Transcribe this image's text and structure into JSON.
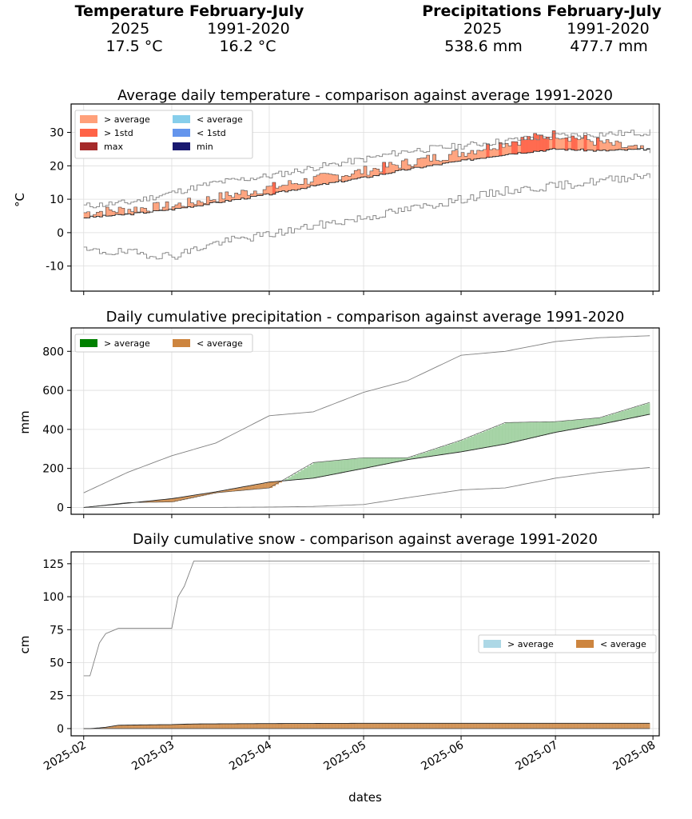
{
  "summary": {
    "temperature": {
      "title": "Temperature February-July",
      "col1": "2025",
      "col2": "1991-2020",
      "val1": "17.5 °C",
      "val2": "16.2 °C"
    },
    "precipitation": {
      "title": "Precipitations February-July",
      "col1": "2025",
      "col2": "1991-2020",
      "val1": "538.6 mm",
      "val2": "477.7 mm"
    }
  },
  "xaxis": {
    "label": "dates",
    "ticks": [
      "2025-02",
      "2025-03",
      "2025-04",
      "2025-05",
      "2025-06",
      "2025-07",
      "2025-08"
    ]
  },
  "colors": {
    "above": "#ffa07a",
    "above_std": "#ff6347",
    "max": "#a52a2a",
    "below": "#87ceeb",
    "below_std": "#6495ed",
    "min": "#191970",
    "precip_above": "#008000",
    "precip_fill": "#98cc98",
    "below_brown": "#cd853f",
    "snow_above": "#add8e6",
    "snow_fill": "#d4a06a",
    "envelope": "#808080"
  },
  "chart_data": [
    {
      "type": "area",
      "title": "Average daily temperature - comparison against average 1991-2020",
      "ylabel": "°C",
      "ylim": [
        -17.5,
        38.5
      ],
      "yticks": [
        -10,
        0,
        10,
        20,
        30
      ],
      "legend": {
        "placement": "top-left",
        "entries": [
          "> average",
          "< average",
          "> 1std",
          "< 1std",
          "max",
          "min"
        ]
      },
      "x_dates": [
        "2025-02-01",
        "2025-02-15",
        "2025-03-01",
        "2025-03-15",
        "2025-04-01",
        "2025-04-15",
        "2025-05-01",
        "2025-05-15",
        "2025-06-01",
        "2025-06-15",
        "2025-07-01",
        "2025-07-15",
        "2025-07-31"
      ],
      "series": [
        {
          "name": "",
          "values": [
            6,
            7,
            8,
            10.5,
            13.5,
            16,
            18.5,
            21,
            24,
            27,
            29.5,
            27,
            24
          ]
        },
        {
          "name": "",
          "values": [
            4.5,
            5.5,
            7,
            9,
            11.5,
            14,
            16.5,
            19,
            21.5,
            23.5,
            25,
            24.5,
            25
          ]
        },
        {
          "name": "",
          "values": [
            8,
            9,
            12,
            15,
            17,
            19.5,
            22,
            24.5,
            26,
            27.5,
            29,
            29.5,
            30
          ]
        },
        {
          "name": "",
          "values": [
            -5.5,
            -6,
            -7,
            -3,
            -0.5,
            2,
            4.5,
            7,
            10,
            12.5,
            14,
            15.5,
            17.5
          ]
        }
      ]
    },
    {
      "type": "area",
      "title": "Daily cumulative precipitation - comparison against average 1991-2020",
      "ylabel": "mm",
      "ylim": [
        -35,
        920
      ],
      "yticks": [
        0,
        200,
        400,
        600,
        800
      ],
      "legend": {
        "placement": "top-left",
        "entries": [
          "> average",
          "< average"
        ]
      },
      "x_dates": [
        "2025-02-01",
        "2025-02-15",
        "2025-03-01",
        "2025-03-15",
        "2025-04-01",
        "2025-04-15",
        "2025-05-01",
        "2025-05-15",
        "2025-06-01",
        "2025-06-15",
        "2025-07-01",
        "2025-07-15",
        "2025-07-31"
      ],
      "series": [
        {
          "name": "",
          "values": [
            0,
            25,
            28,
            75,
            100,
            230,
            255,
            255,
            345,
            435,
            440,
            460,
            538.6
          ]
        },
        {
          "name": "",
          "values": [
            0,
            22,
            45,
            80,
            130,
            150,
            200,
            245,
            285,
            325,
            385,
            425,
            477.7
          ]
        },
        {
          "name": "",
          "values": [
            75,
            180,
            265,
            330,
            470,
            490,
            590,
            650,
            780,
            800,
            850,
            870,
            880
          ]
        },
        {
          "name": "",
          "values": [
            0,
            0,
            0,
            0,
            2,
            5,
            15,
            50,
            90,
            100,
            150,
            180,
            205
          ]
        }
      ]
    },
    {
      "type": "area",
      "title": "Daily cumulative snow - comparison against average 1991-2020",
      "ylabel": "cm",
      "ylim": [
        -5.5,
        134
      ],
      "yticks": [
        0,
        25,
        50,
        75,
        100,
        125
      ],
      "legend": {
        "placement": "center-right",
        "entries": [
          "> average",
          "< average"
        ]
      },
      "x_dates": [
        "2025-02-01",
        "2025-02-03",
        "2025-02-06",
        "2025-02-08",
        "2025-02-12",
        "2025-02-20",
        "2025-03-01",
        "2025-03-03",
        "2025-03-05",
        "2025-03-08",
        "2025-04-01",
        "2025-05-01",
        "2025-06-01",
        "2025-07-01",
        "2025-07-31"
      ],
      "series": [
        {
          "name": "",
          "values": [
            0,
            0,
            0,
            0,
            0,
            0,
            0,
            0,
            0,
            0,
            0,
            0,
            0,
            0,
            0
          ]
        },
        {
          "name": "",
          "values": [
            0,
            0,
            0.5,
            1,
            2.5,
            2.8,
            3,
            3.2,
            3.3,
            3.5,
            3.8,
            4,
            4,
            4,
            4
          ]
        },
        {
          "name": "",
          "values": [
            40,
            40,
            65,
            72,
            76,
            76,
            76,
            100,
            108,
            127,
            127,
            127,
            127,
            127,
            127
          ]
        },
        {
          "name": "",
          "values": [
            0,
            0,
            0,
            0,
            0,
            0,
            0,
            0,
            0,
            0,
            0,
            0,
            0,
            0,
            0
          ]
        }
      ]
    }
  ]
}
